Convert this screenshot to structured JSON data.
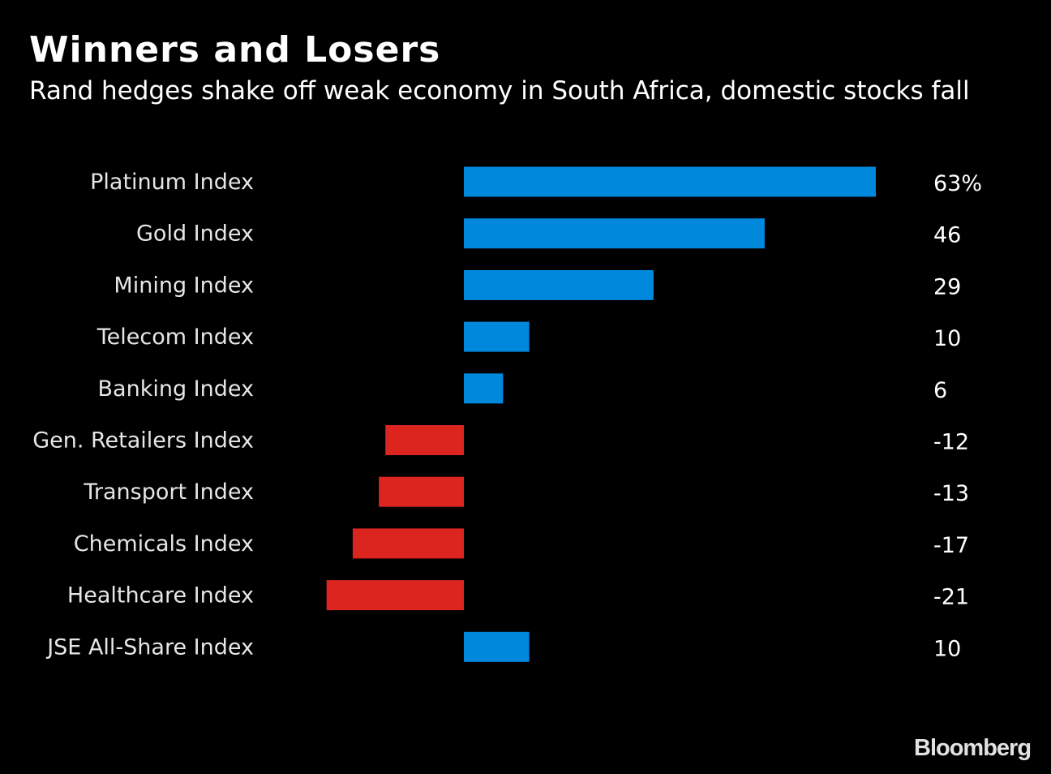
{
  "chart_data": {
    "type": "bar",
    "orientation": "horizontal",
    "title": "Winners and Losers",
    "subtitle": "Rand hedges shake off weak economy in South Africa, domestic stocks fall",
    "categories": [
      "Platinum Index",
      "Gold Index",
      "Mining Index",
      "Telecom Index",
      "Banking Index",
      "Gen. Retailers Index",
      "Transport Index",
      "Chemicals Index",
      "Healthcare Index",
      "JSE All-Share Index"
    ],
    "values": [
      63,
      46,
      29,
      10,
      6,
      -12,
      -13,
      -17,
      -21,
      10
    ],
    "value_labels": [
      "63%",
      "46",
      "29",
      "10",
      "6",
      "-12",
      "-13",
      "-17",
      "-21",
      "10"
    ],
    "xlim": [
      -21,
      63
    ],
    "grid": false,
    "colors": {
      "positive": "#0088dd",
      "negative": "#dd2520",
      "background": "#000000"
    }
  },
  "source_logo": "Bloomberg"
}
